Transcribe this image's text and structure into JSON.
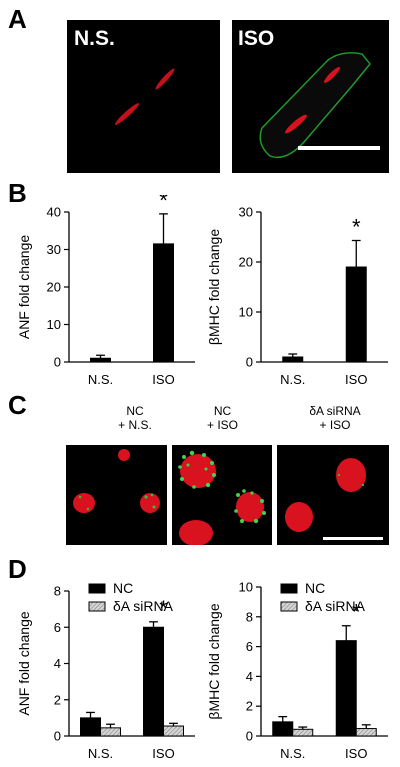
{
  "panels": {
    "A": {
      "letter": "A",
      "images": [
        {
          "label": "N.S."
        },
        {
          "label": "ISO"
        }
      ]
    },
    "B": {
      "letter": "B"
    },
    "C": {
      "letter": "C",
      "conditions": [
        {
          "line1": "NC",
          "line2": "+ N.S."
        },
        {
          "line1": "NC",
          "line2": "+ ISO"
        },
        {
          "line1": "δA siRNA",
          "line2": "+ ISO"
        }
      ]
    },
    "D": {
      "letter": "D"
    }
  },
  "colors": {
    "bar": "#000000",
    "siRNA_bar": "#bdbdbd",
    "membrane": "#1fa12a",
    "nucleus": "#e8102a",
    "axis": "#000000"
  },
  "chart_data": [
    {
      "id": "B-ANF",
      "type": "bar",
      "categories": [
        "N.S.",
        "ISO"
      ],
      "values": [
        1,
        31.5
      ],
      "errors": [
        0.8,
        8
      ],
      "ylabel": "ANF fold change",
      "ylim": [
        0,
        40
      ],
      "yticks": [
        "0",
        "10",
        "20",
        "30",
        "40"
      ],
      "annotations": [
        {
          "category": "ISO",
          "text": "*"
        }
      ]
    },
    {
      "id": "B-bMHC",
      "type": "bar",
      "categories": [
        "N.S.",
        "ISO"
      ],
      "values": [
        1,
        19
      ],
      "errors": [
        0.6,
        5.3
      ],
      "ylabel": "βMHC fold change",
      "ylim": [
        0,
        30
      ],
      "yticks": [
        "0",
        "10",
        "20",
        "30"
      ],
      "annotations": [
        {
          "category": "ISO",
          "text": "*"
        }
      ]
    },
    {
      "id": "D-ANF",
      "type": "bar",
      "categories": [
        "N.S.",
        "ISO"
      ],
      "series": [
        {
          "name": "NC",
          "values": [
            1.0,
            6.0
          ],
          "errors": [
            0.3,
            0.3
          ]
        },
        {
          "name": "δA siRNA",
          "values": [
            0.45,
            0.55
          ],
          "errors": [
            0.2,
            0.15
          ]
        }
      ],
      "ylabel": "ANF fold change",
      "ylim": [
        0,
        8
      ],
      "yticks": [
        "0",
        "2",
        "4",
        "6",
        "8"
      ],
      "legend": "top-left",
      "annotations": [
        {
          "category": "ISO",
          "text": "*"
        }
      ]
    },
    {
      "id": "D-bMHC",
      "type": "bar",
      "categories": [
        "N.S.",
        "ISO"
      ],
      "series": [
        {
          "name": "NC",
          "values": [
            0.95,
            6.4
          ],
          "errors": [
            0.35,
            1.0
          ]
        },
        {
          "name": "δA siRNA",
          "values": [
            0.45,
            0.5
          ],
          "errors": [
            0.15,
            0.25
          ]
        }
      ],
      "ylabel": "βMHC fold change",
      "ylim": [
        0,
        10
      ],
      "yticks": [
        "0",
        "2",
        "4",
        "6",
        "8",
        "10"
      ],
      "legend": "top-left",
      "annotations": [
        {
          "category": "ISO",
          "text": "*"
        }
      ]
    }
  ]
}
